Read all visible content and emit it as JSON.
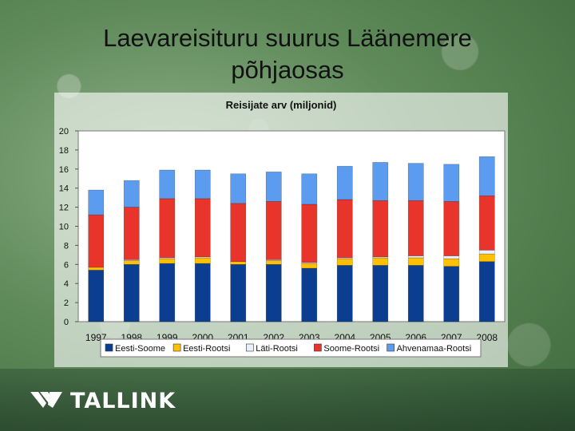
{
  "slide": {
    "title_line1": "Laevareisituru suurus Läänemere",
    "title_line2": "põhjaosas",
    "logo_text": "TALLINK"
  },
  "chart_data": {
    "type": "bar",
    "stacked": true,
    "title": "Reisijate arv (miljonid)",
    "xlabel": "",
    "ylabel": "",
    "ylim": [
      0,
      20
    ],
    "yticks": [
      0,
      2,
      4,
      6,
      8,
      10,
      12,
      14,
      16,
      18,
      20
    ],
    "grid": false,
    "legend_position": "bottom",
    "categories": [
      "1997",
      "1998",
      "1999",
      "2000",
      "2001",
      "2002",
      "2003",
      "2004",
      "2005",
      "2006",
      "2007",
      "2008"
    ],
    "series": [
      {
        "name": "Eesti-Soome",
        "color": "#0b3d91",
        "values": [
          5.4,
          6.0,
          6.1,
          6.1,
          6.0,
          6.0,
          5.6,
          5.9,
          5.9,
          5.9,
          5.8,
          6.3
        ]
      },
      {
        "name": "Eesti-Rootsi",
        "color": "#ffc000",
        "values": [
          0.3,
          0.4,
          0.5,
          0.6,
          0.3,
          0.4,
          0.5,
          0.7,
          0.8,
          0.8,
          0.8,
          0.8
        ]
      },
      {
        "name": "Läti-Rootsi",
        "color": "#e8f0fb",
        "values": [
          0.0,
          0.1,
          0.1,
          0.1,
          0.0,
          0.1,
          0.1,
          0.1,
          0.1,
          0.2,
          0.3,
          0.4
        ]
      },
      {
        "name": "Soome-Rootsi",
        "color": "#e8342a",
        "values": [
          5.5,
          5.5,
          6.2,
          6.1,
          6.1,
          6.1,
          6.1,
          6.1,
          5.9,
          5.8,
          5.7,
          5.7
        ]
      },
      {
        "name": "Ahvenamaa-Rootsi",
        "color": "#5b9bf0",
        "values": [
          2.6,
          2.8,
          3.0,
          3.0,
          3.1,
          3.1,
          3.2,
          3.5,
          4.0,
          3.9,
          3.9,
          4.1
        ]
      }
    ]
  }
}
